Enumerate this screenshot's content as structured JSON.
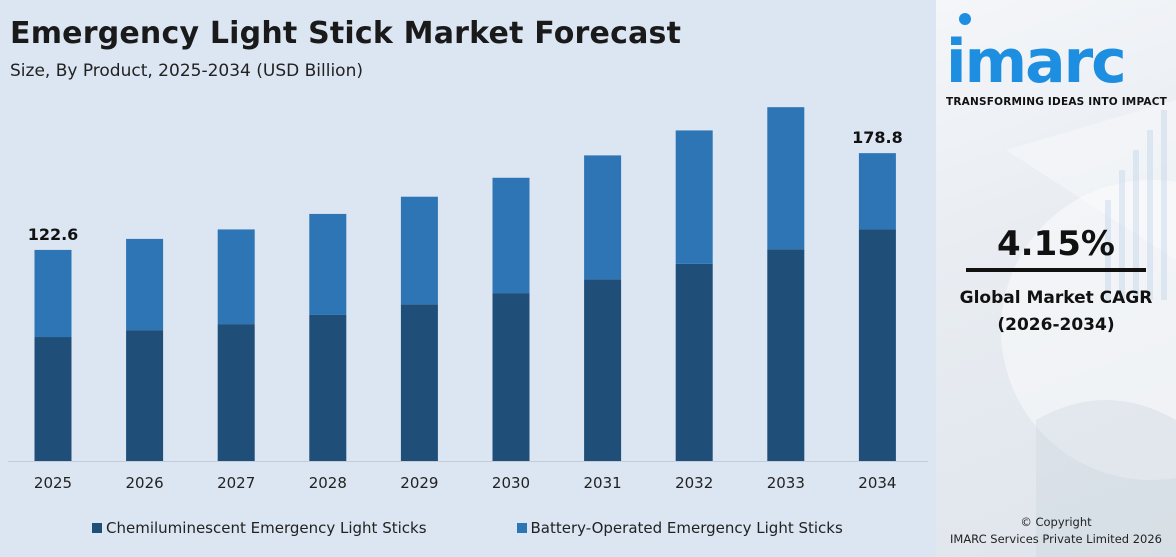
{
  "header": {
    "title": "Emergency Light Stick Market Forecast",
    "subtitle": "Size, By Product, 2025-2034 (USD Billion)"
  },
  "chart_data": {
    "type": "bar",
    "stacked": true,
    "title": "Emergency Light Stick Market Forecast",
    "subtitle": "Size, By Product, 2025-2034 (USD Billion)",
    "categories": [
      "2025",
      "2026",
      "2027",
      "2028",
      "2029",
      "2030",
      "2031",
      "2032",
      "2033",
      "2034"
    ],
    "series": [
      {
        "name": "Chemiluminescent Emergency Light Sticks",
        "color": "#1f4e79",
        "values": [
          72.0,
          76.0,
          79.5,
          85.0,
          91.0,
          97.5,
          105.5,
          114.5,
          123.0,
          134.5
        ]
      },
      {
        "name": "Battery-Operated Emergency Light Sticks",
        "color": "#2e75b6",
        "values": [
          50.6,
          53.0,
          55.0,
          58.5,
          62.5,
          67.0,
          72.0,
          77.5,
          82.5,
          44.3
        ]
      }
    ],
    "totals": [
      122.6,
      129.0,
      134.5,
      143.5,
      153.5,
      164.5,
      177.5,
      192.0,
      205.5,
      178.8
    ],
    "data_labels": [
      {
        "index": 0,
        "text": "122.6"
      },
      {
        "index": 9,
        "text": "178.8"
      }
    ],
    "ylim": [
      0,
      230
    ],
    "grid": false,
    "legend_position": "bottom"
  },
  "sidebar": {
    "logo_text": "imarc",
    "tagline": "TRANSFORMING IDEAS INTO IMPACT",
    "cagr_value": "4.15%",
    "cagr_label_line1": "Global Market CAGR",
    "cagr_label_line2": "(2026-2034)",
    "copyright_line1": "© Copyright",
    "copyright_line2": "IMARC Services Private Limited 2026",
    "brand_color": "#1e8ee0"
  }
}
